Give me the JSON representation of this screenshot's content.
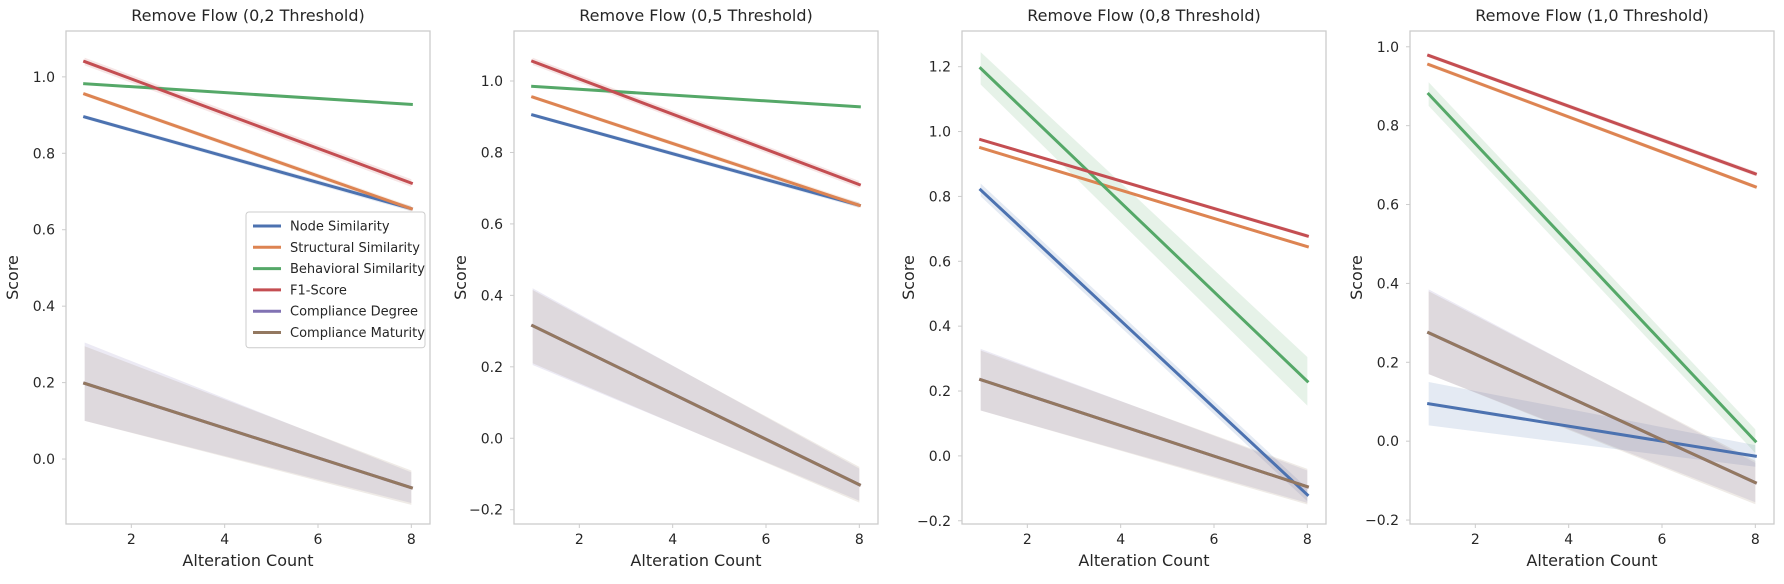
{
  "chart_data": [
    {
      "type": "line",
      "title": "Remove Flow (0,2 Threshold)",
      "xlabel": "Alteration Count",
      "ylabel": "Score",
      "xlim": [
        0.6,
        8.4
      ],
      "ylim": [
        -0.17,
        1.12
      ],
      "xticks": [
        2,
        4,
        6,
        8
      ],
      "yticks": [
        0.0,
        0.2,
        0.4,
        0.6,
        0.8,
        1.0
      ],
      "tick_labels_x": [
        "2",
        "4",
        "6",
        "8"
      ],
      "tick_labels_y": [
        "0.0",
        "0.2",
        "0.4",
        "0.6",
        "0.8",
        "1.0"
      ],
      "grid": false,
      "legend": "center-right",
      "series": [
        {
          "name": "Node Similarity",
          "color": "#4c72b0",
          "x": [
            1,
            8
          ],
          "y": [
            0.895,
            0.655
          ],
          "band": [
            [
              0.89,
              0.9
            ],
            [
              0.648,
              0.662
            ]
          ]
        },
        {
          "name": "Structural Similarity",
          "color": "#dd8452",
          "x": [
            1,
            8
          ],
          "y": [
            0.955,
            0.655
          ],
          "band": [
            [
              0.95,
              0.96
            ],
            [
              0.648,
              0.662
            ]
          ]
        },
        {
          "name": "Behavioral Similarity",
          "color": "#55a868",
          "x": [
            1,
            8
          ],
          "y": [
            0.982,
            0.928
          ],
          "band": [
            [
              0.979,
              0.985
            ],
            [
              0.925,
              0.931
            ]
          ]
        },
        {
          "name": "F1-Score",
          "color": "#c44e52",
          "x": [
            1,
            8
          ],
          "y": [
            1.04,
            0.722
          ],
          "band": [
            [
              1.03,
              1.05
            ],
            [
              0.712,
              0.732
            ]
          ]
        },
        {
          "name": "Compliance Degree",
          "color": "#8172b3",
          "x": [
            1,
            8
          ],
          "y": [
            0.198,
            -0.075
          ],
          "band": [
            [
              0.1,
              0.305
            ],
            [
              -0.115,
              -0.035
            ]
          ]
        },
        {
          "name": "Compliance Maturity",
          "color": "#937860",
          "x": [
            1,
            8
          ],
          "y": [
            0.198,
            -0.075
          ],
          "band": [
            [
              0.1,
              0.295
            ],
            [
              -0.12,
              -0.03
            ]
          ]
        }
      ]
    },
    {
      "type": "line",
      "title": "Remove Flow (0,5 Threshold)",
      "xlabel": "Alteration Count",
      "ylabel": "Score",
      "xlim": [
        0.6,
        8.4
      ],
      "ylim": [
        -0.24,
        1.14
      ],
      "xticks": [
        2,
        4,
        6,
        8
      ],
      "yticks": [
        -0.2,
        0.0,
        0.2,
        0.4,
        0.6,
        0.8,
        1.0
      ],
      "tick_labels_x": [
        "2",
        "4",
        "6",
        "8"
      ],
      "tick_labels_y": [
        "−0.2",
        "0.0",
        "0.2",
        "0.4",
        "0.6",
        "0.8",
        "1.0"
      ],
      "grid": false,
      "series": [
        {
          "name": "Node Similarity",
          "color": "#4c72b0",
          "x": [
            1,
            8
          ],
          "y": [
            0.905,
            0.652
          ],
          "band": [
            [
              0.9,
              0.91
            ],
            [
              0.645,
              0.66
            ]
          ]
        },
        {
          "name": "Structural Similarity",
          "color": "#dd8452",
          "x": [
            1,
            8
          ],
          "y": [
            0.955,
            0.652
          ],
          "band": [
            [
              0.95,
              0.96
            ],
            [
              0.645,
              0.66
            ]
          ]
        },
        {
          "name": "Behavioral Similarity",
          "color": "#55a868",
          "x": [
            1,
            8
          ],
          "y": [
            0.985,
            0.928
          ],
          "band": [
            [
              0.982,
              0.988
            ],
            [
              0.925,
              0.931
            ]
          ]
        },
        {
          "name": "F1-Score",
          "color": "#c44e52",
          "x": [
            1,
            8
          ],
          "y": [
            1.055,
            0.71
          ],
          "band": [
            [
              1.045,
              1.065
            ],
            [
              0.7,
              0.72
            ]
          ]
        },
        {
          "name": "Compliance Degree",
          "color": "#8172b3",
          "x": [
            1,
            8
          ],
          "y": [
            0.315,
            -0.13
          ],
          "band": [
            [
              0.205,
              0.42
            ],
            [
              -0.175,
              -0.085
            ]
          ]
        },
        {
          "name": "Compliance Maturity",
          "color": "#937860",
          "x": [
            1,
            8
          ],
          "y": [
            0.315,
            -0.13
          ],
          "band": [
            [
              0.21,
              0.415
            ],
            [
              -0.18,
              -0.08
            ]
          ]
        }
      ]
    },
    {
      "type": "line",
      "title": "Remove Flow (0,8 Threshold)",
      "xlabel": "Alteration Count",
      "ylabel": "Score",
      "xlim": [
        0.6,
        8.4
      ],
      "ylim": [
        -0.21,
        1.31
      ],
      "xticks": [
        2,
        4,
        6,
        8
      ],
      "yticks": [
        -0.2,
        0.0,
        0.2,
        0.4,
        0.6,
        0.8,
        1.0,
        1.2
      ],
      "tick_labels_x": [
        "2",
        "4",
        "6",
        "8"
      ],
      "tick_labels_y": [
        "−0.2",
        "0.0",
        "0.2",
        "0.4",
        "0.6",
        "0.8",
        "1.0",
        "1.2"
      ],
      "grid": false,
      "series": [
        {
          "name": "Node Similarity",
          "color": "#4c72b0",
          "x": [
            1,
            8
          ],
          "y": [
            0.82,
            -0.12
          ],
          "band": [
            [
              0.8,
              0.84
            ],
            [
              -0.14,
              -0.1
            ]
          ]
        },
        {
          "name": "Structural Similarity",
          "color": "#dd8452",
          "x": [
            1,
            8
          ],
          "y": [
            0.95,
            0.645
          ],
          "band": [
            [
              0.945,
              0.955
            ],
            [
              0.64,
              0.65
            ]
          ]
        },
        {
          "name": "Behavioral Similarity",
          "color": "#55a868",
          "x": [
            1,
            8
          ],
          "y": [
            1.195,
            0.23
          ],
          "band": [
            [
              1.145,
              1.245
            ],
            [
              0.155,
              0.305
            ]
          ]
        },
        {
          "name": "F1-Score",
          "color": "#c44e52",
          "x": [
            1,
            8
          ],
          "y": [
            0.975,
            0.678
          ],
          "band": [
            [
              0.97,
              0.98
            ],
            [
              0.672,
              0.684
            ]
          ]
        },
        {
          "name": "Compliance Degree",
          "color": "#8172b3",
          "x": [
            1,
            8
          ],
          "y": [
            0.235,
            -0.095
          ],
          "band": [
            [
              0.14,
              0.33
            ],
            [
              -0.145,
              -0.045
            ]
          ]
        },
        {
          "name": "Compliance Maturity",
          "color": "#937860",
          "x": [
            1,
            8
          ],
          "y": [
            0.235,
            -0.095
          ],
          "band": [
            [
              0.14,
              0.325
            ],
            [
              -0.15,
              -0.04
            ]
          ]
        }
      ]
    },
    {
      "type": "line",
      "title": "Remove Flow (1,0 Threshold)",
      "xlabel": "Alteration Count",
      "ylabel": "Score",
      "xlim": [
        0.6,
        8.4
      ],
      "ylim": [
        -0.21,
        1.04
      ],
      "xticks": [
        2,
        4,
        6,
        8
      ],
      "yticks": [
        -0.2,
        0.0,
        0.2,
        0.4,
        0.6,
        0.8,
        1.0
      ],
      "tick_labels_x": [
        "2",
        "4",
        "6",
        "8"
      ],
      "tick_labels_y": [
        "−0.2",
        "0.0",
        "0.2",
        "0.4",
        "0.6",
        "0.8",
        "1.0"
      ],
      "grid": false,
      "series": [
        {
          "name": "Node Similarity",
          "color": "#4c72b0",
          "x": [
            1,
            8
          ],
          "y": [
            0.095,
            -0.038
          ],
          "band": [
            [
              0.04,
              0.15
            ],
            [
              -0.065,
              -0.01
            ]
          ]
        },
        {
          "name": "Structural Similarity",
          "color": "#dd8452",
          "x": [
            1,
            8
          ],
          "y": [
            0.955,
            0.645
          ],
          "band": [
            [
              0.95,
              0.96
            ],
            [
              0.64,
              0.65
            ]
          ]
        },
        {
          "name": "Behavioral Similarity",
          "color": "#55a868",
          "x": [
            1,
            8
          ],
          "y": [
            0.88,
            0.0
          ],
          "band": [
            [
              0.85,
              0.91
            ],
            [
              -0.03,
              0.03
            ]
          ]
        },
        {
          "name": "F1-Score",
          "color": "#c44e52",
          "x": [
            1,
            8
          ],
          "y": [
            0.978,
            0.678
          ],
          "band": [
            [
              0.973,
              0.983
            ],
            [
              0.672,
              0.684
            ]
          ]
        },
        {
          "name": "Compliance Degree",
          "color": "#8172b3",
          "x": [
            1,
            8
          ],
          "y": [
            0.275,
            -0.105
          ],
          "band": [
            [
              0.17,
              0.385
            ],
            [
              -0.155,
              -0.055
            ]
          ]
        },
        {
          "name": "Compliance Maturity",
          "color": "#937860",
          "x": [
            1,
            8
          ],
          "y": [
            0.275,
            -0.105
          ],
          "band": [
            [
              0.17,
              0.38
            ],
            [
              -0.16,
              -0.05
            ]
          ]
        }
      ]
    }
  ]
}
